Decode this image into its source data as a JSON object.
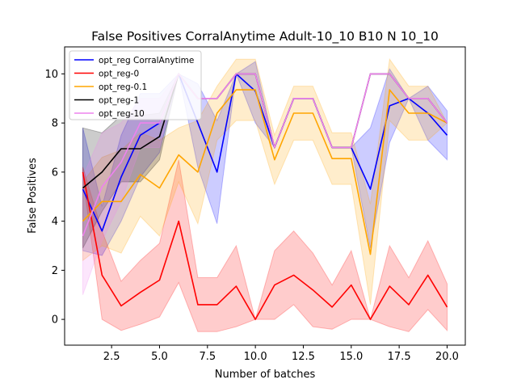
{
  "chart_data": {
    "type": "line",
    "title": "False Positives CorralAnytime Adult-10_10 B10 N 10_10",
    "xlabel": "Number of batches",
    "ylabel": "False Positives",
    "xlim": [
      0.05,
      20.95
    ],
    "ylim": [
      -1.05,
      11.1
    ],
    "xticks": [
      2.5,
      5.0,
      7.5,
      10.0,
      12.5,
      15.0,
      17.5,
      20.0
    ],
    "xtick_labels": [
      "2.5",
      "5.0",
      "7.5",
      "10.0",
      "12.5",
      "15.0",
      "17.5",
      "20.0"
    ],
    "yticks": [
      0,
      2,
      4,
      6,
      8,
      10
    ],
    "ytick_labels": [
      "0",
      "2",
      "4",
      "6",
      "8",
      "10"
    ],
    "grid": false,
    "legend_position": "top-left",
    "x": [
      1,
      2,
      3,
      4,
      5,
      6,
      7,
      8,
      9,
      10,
      11,
      12,
      13,
      14,
      15,
      16,
      17,
      18,
      19,
      20
    ],
    "series": [
      {
        "name": "opt_reg CorralAnytime",
        "color": "#0000ff",
        "values": [
          5.3,
          3.6,
          5.8,
          7.5,
          8.0,
          10.0,
          8.0,
          6.0,
          10.0,
          9.3,
          7.0,
          9.0,
          9.0,
          7.0,
          7.0,
          5.3,
          8.7,
          9.0,
          8.4,
          7.5
        ],
        "lower": [
          2.8,
          2.6,
          4.0,
          5.8,
          6.8,
          10.0,
          6.2,
          3.9,
          10.0,
          8.0,
          7.0,
          9.0,
          9.0,
          7.0,
          7.0,
          2.9,
          7.2,
          9.0,
          7.3,
          6.5
        ],
        "upper": [
          7.8,
          4.6,
          7.5,
          9.2,
          9.2,
          10.0,
          9.6,
          8.1,
          10.0,
          10.5,
          7.0,
          9.0,
          9.0,
          7.0,
          7.0,
          7.8,
          10.2,
          9.0,
          9.5,
          8.5
        ]
      },
      {
        "name": "opt_reg-0",
        "color": "#ff0000",
        "values": [
          6.0,
          1.8,
          0.55,
          1.1,
          1.6,
          4.0,
          0.6,
          0.6,
          1.35,
          0.0,
          1.4,
          1.8,
          1.2,
          0.5,
          1.4,
          0.0,
          1.35,
          0.6,
          1.8,
          0.5
        ],
        "lower": [
          5.8,
          0.0,
          -0.45,
          -0.2,
          0.1,
          1.5,
          -0.5,
          -0.5,
          -0.3,
          0.0,
          0.0,
          0.6,
          -0.3,
          -0.4,
          0.0,
          0.0,
          -0.3,
          -0.5,
          0.4,
          -0.45
        ],
        "upper": [
          6.2,
          3.6,
          1.55,
          2.4,
          3.1,
          6.5,
          1.7,
          1.7,
          3.0,
          0.0,
          2.8,
          3.6,
          2.7,
          1.4,
          2.8,
          0.0,
          3.0,
          1.7,
          3.2,
          1.45
        ]
      },
      {
        "name": "opt_reg-0.1",
        "color": "#ffa500",
        "values": [
          4.0,
          4.8,
          4.8,
          5.9,
          5.35,
          6.7,
          6.0,
          8.4,
          9.35,
          9.35,
          6.5,
          8.4,
          8.4,
          6.55,
          6.55,
          2.65,
          9.35,
          8.4,
          8.4,
          8.0
        ],
        "lower": [
          2.4,
          3.0,
          2.7,
          4.2,
          3.4,
          5.6,
          3.9,
          7.3,
          8.1,
          8.1,
          5.5,
          7.3,
          7.3,
          5.5,
          5.5,
          0.6,
          8.1,
          7.3,
          7.3,
          8.0
        ],
        "upper": [
          5.6,
          6.6,
          6.9,
          7.6,
          7.3,
          7.8,
          8.1,
          9.5,
          10.6,
          10.6,
          7.5,
          9.5,
          9.5,
          7.6,
          7.6,
          4.7,
          10.6,
          9.5,
          9.5,
          8.0
        ]
      },
      {
        "name": "opt_reg-1",
        "color": "#000000",
        "values": [
          5.35,
          6.0,
          6.95,
          6.95,
          7.45,
          10.0,
          9.0,
          9.0,
          10.0,
          10.0,
          7.0,
          9.0,
          9.0,
          7.0,
          7.0,
          10.0,
          10.0,
          9.0,
          9.0,
          8.0
        ],
        "lower": [
          2.9,
          4.4,
          5.6,
          5.6,
          6.5,
          10.0,
          9.0,
          9.0,
          10.0,
          10.0,
          7.0,
          9.0,
          9.0,
          7.0,
          7.0,
          10.0,
          10.0,
          9.0,
          9.0,
          8.0
        ],
        "upper": [
          7.8,
          7.6,
          8.3,
          8.3,
          8.4,
          10.0,
          9.0,
          9.0,
          10.0,
          10.0,
          7.0,
          9.0,
          9.0,
          7.0,
          7.0,
          10.0,
          10.0,
          9.0,
          9.0,
          8.0
        ]
      },
      {
        "name": "opt_reg-10",
        "color": "#ee82ee",
        "values": [
          3.4,
          5.4,
          6.4,
          8.0,
          8.0,
          10.0,
          9.0,
          9.0,
          10.0,
          10.0,
          7.0,
          9.0,
          9.0,
          7.0,
          7.0,
          10.0,
          10.0,
          9.0,
          9.0,
          8.0
        ],
        "lower": [
          1.0,
          3.2,
          4.8,
          7.0,
          7.0,
          10.0,
          9.0,
          9.0,
          10.0,
          10.0,
          7.0,
          9.0,
          9.0,
          7.0,
          7.0,
          10.0,
          10.0,
          9.0,
          9.0,
          8.0
        ],
        "upper": [
          5.8,
          7.6,
          8.0,
          9.0,
          9.0,
          10.0,
          9.0,
          9.0,
          10.0,
          10.0,
          7.0,
          9.0,
          9.0,
          7.0,
          7.0,
          10.0,
          10.0,
          9.0,
          9.0,
          8.0
        ]
      }
    ]
  }
}
